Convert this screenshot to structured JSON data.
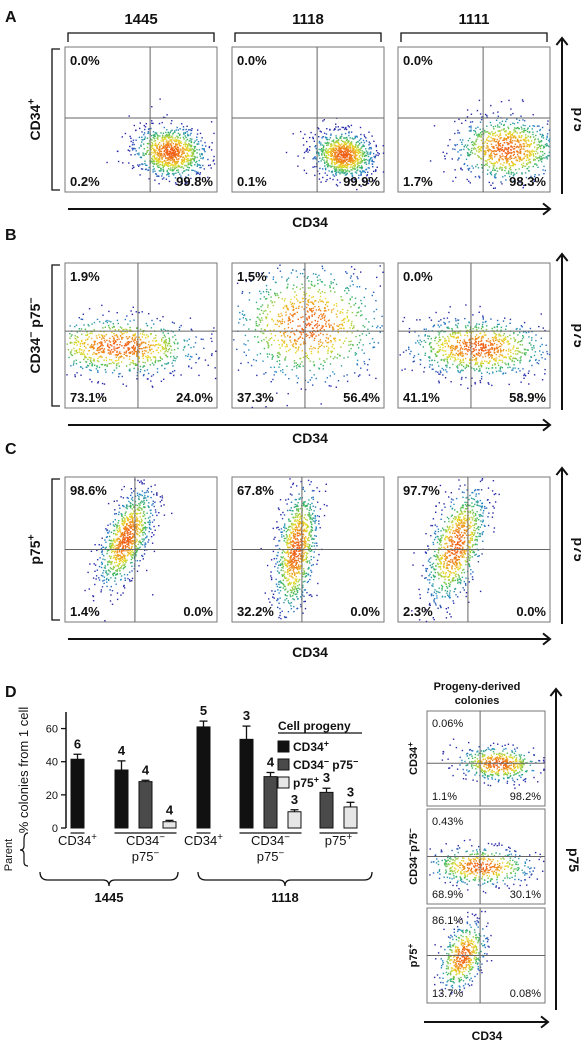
{
  "panel_letters": [
    "A",
    "B",
    "C",
    "D"
  ],
  "samples": [
    "1445",
    "1118",
    "1111"
  ],
  "colors": {
    "ink": "#111111",
    "black_bar": "#111111",
    "grey_bar": "#4a4a4a",
    "light_bar": "#e6e6e6"
  },
  "flow_panels": [
    {
      "letter": "A",
      "row_label": "CD34+",
      "x_axis": "CD34",
      "y_axis": "p75",
      "plots": [
        {
          "ul": "0.0%",
          "ll": "0.2%",
          "lr": "99.8%",
          "cloud": [
            0.69,
            0.72,
            0.12,
            0.09,
            0.1
          ]
        },
        {
          "ul": "0.0%",
          "ll": "0.1%",
          "lr": "99.9%",
          "cloud": [
            0.73,
            0.74,
            0.1,
            0.08,
            0.1
          ]
        },
        {
          "ul": "0.0%",
          "ll": "1.7%",
          "lr": "98.3%",
          "cloud": [
            0.71,
            0.7,
            0.17,
            0.11,
            0.05
          ]
        }
      ]
    },
    {
      "letter": "B",
      "row_label": "CD34− p75−",
      "x_axis": "CD34",
      "y_axis": "p75",
      "plots": [
        {
          "ul": "1.9%",
          "ll": "73.1%",
          "lr": "24.0%",
          "cloud": [
            0.35,
            0.57,
            0.27,
            0.1,
            0.05
          ]
        },
        {
          "ul": "1.5%",
          "ll": "37.3%",
          "lr": "56.4%",
          "cloud": [
            0.5,
            0.42,
            0.25,
            0.2,
            0
          ]
        },
        {
          "ul": "0.0%",
          "ll": "41.1%",
          "lr": "58.9%",
          "cloud": [
            0.52,
            0.58,
            0.23,
            0.1,
            0.05
          ]
        }
      ]
    },
    {
      "letter": "C",
      "row_label": "p75+",
      "x_axis": "CD34",
      "y_axis": "p75",
      "plots": [
        {
          "ul": "98.6%",
          "ll": "1.4%",
          "lr": "0.0%",
          "cloud": [
            0.4,
            0.42,
            0.09,
            0.17,
            -0.6
          ]
        },
        {
          "ul": "67.8%",
          "ll": "32.2%",
          "lr": "0.0%",
          "cloud": [
            0.42,
            0.5,
            0.07,
            0.22,
            -0.4
          ]
        },
        {
          "ul": "97.7%",
          "ll": "2.3%",
          "lr": "0.0%",
          "cloud": [
            0.38,
            0.47,
            0.1,
            0.2,
            -0.5
          ]
        }
      ]
    }
  ],
  "chart_data": {
    "type": "bar",
    "ylabel": "% colonies from 1 cell",
    "ylim": [
      0,
      70
    ],
    "yticks": [
      0,
      20,
      40,
      60
    ],
    "legend_title": "Cell progeny",
    "series": [
      {
        "name": "CD34+",
        "color": "#111111"
      },
      {
        "name": "CD34− p75−",
        "color": "#4a4a4a"
      },
      {
        "name": "p75+",
        "color": "#e6e6e6"
      }
    ],
    "groups": [
      {
        "parent": "CD34+",
        "sample": "1445",
        "values": [
          41.5
        ],
        "errors": [
          3.0
        ],
        "series": [
          0
        ],
        "n": [
          "6"
        ]
      },
      {
        "parent": "CD34− p75−",
        "sample": "1445",
        "values": [
          35.0,
          28.0,
          3.8
        ],
        "errors": [
          5.5,
          0.8,
          0.8
        ],
        "series": [
          0,
          1,
          2
        ],
        "n": [
          "4",
          "4",
          "4"
        ]
      },
      {
        "parent": "CD34+",
        "sample": "1118",
        "values": [
          61.0
        ],
        "errors": [
          3.5
        ],
        "series": [
          0
        ],
        "n": [
          "5"
        ]
      },
      {
        "parent": "CD34− p75−",
        "sample": "1118",
        "values": [
          53.5,
          31.0,
          9.8
        ],
        "errors": [
          8.0,
          2.5,
          1.2
        ],
        "series": [
          0,
          1,
          2
        ],
        "n": [
          "3",
          "4",
          "3"
        ]
      },
      {
        "parent": "p75+",
        "sample": "1118",
        "values": [
          21.5,
          12.7
        ],
        "errors": [
          2.5,
          2.8
        ],
        "series": [
          1,
          2
        ],
        "n": [
          "3",
          "3"
        ]
      }
    ],
    "parent_label": "Parent",
    "sample_labels": [
      "1445",
      "1118"
    ]
  },
  "progeny": {
    "title_line1": "Progeny-derived",
    "title_line2": "colonies",
    "x_axis": "CD34",
    "y_axis": "p75",
    "plots": [
      {
        "row_label": "CD34+",
        "ul": "0.06%",
        "ll": "1.1%",
        "lr": "98.2%",
        "cloud": [
          0.6,
          0.55,
          0.17,
          0.09,
          0.1
        ]
      },
      {
        "row_label": "CD34−p75−",
        "ul": "0.43%",
        "ll": "68.9%",
        "lr": "30.1%",
        "cloud": [
          0.45,
          0.6,
          0.22,
          0.1,
          0.05
        ]
      },
      {
        "row_label": "p75+",
        "ul": "86.1%",
        "ll": "13.7%",
        "lr": "0.08%",
        "cloud": [
          0.3,
          0.5,
          0.1,
          0.18,
          -0.4
        ]
      }
    ]
  }
}
